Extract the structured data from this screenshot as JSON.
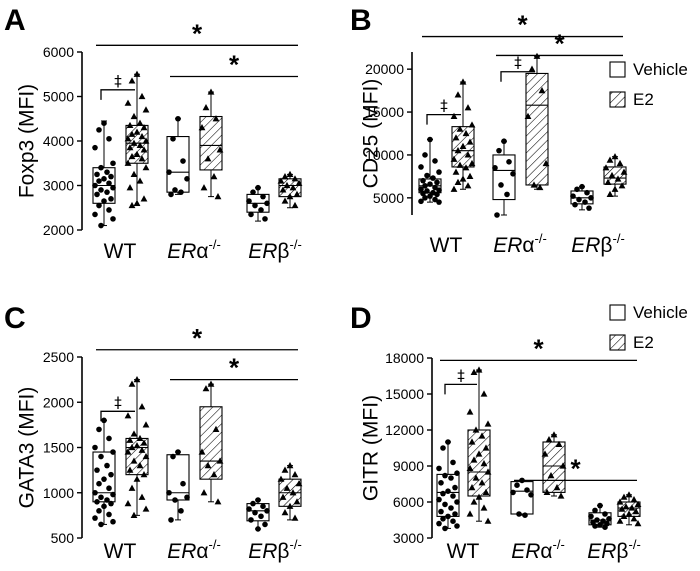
{
  "chart_data": [
    {
      "type": "box",
      "panel": "A",
      "ylabel": "Foxp3 (MFI)",
      "ylim": [
        2000,
        6000
      ],
      "yticks": [
        2000,
        3000,
        4000,
        5000,
        6000
      ],
      "categories": [
        {
          "base": "WT",
          "sup": ""
        },
        {
          "base": "ER",
          "greek": "α",
          "sup": "-/-"
        },
        {
          "base": "ER",
          "greek": "β",
          "sup": "-/-"
        }
      ],
      "series": [
        {
          "group": 0,
          "fill": "open",
          "stats": {
            "min": 2100,
            "q1": 2600,
            "median": 3000,
            "q3": 3400,
            "max": 4450
          },
          "points": [
            4400,
            4250,
            4050,
            3850,
            3500,
            3400,
            3300,
            3250,
            3200,
            3150,
            3100,
            3050,
            3000,
            2950,
            2900,
            2850,
            2800,
            2700,
            2650,
            2550,
            2450,
            2350,
            2250,
            2100
          ]
        },
        {
          "group": 0,
          "fill": "hatched",
          "stats": {
            "min": 2550,
            "q1": 3500,
            "median": 3950,
            "q3": 4350,
            "max": 5500
          },
          "points": [
            5500,
            5350,
            5000,
            4850,
            4700,
            4550,
            4400,
            4350,
            4300,
            4200,
            4150,
            4100,
            4050,
            4000,
            3950,
            3900,
            3850,
            3800,
            3700,
            3650,
            3600,
            3500,
            3400,
            3250,
            3100,
            2950,
            2700,
            2600,
            2550
          ]
        },
        {
          "group": 1,
          "fill": "open",
          "stats": {
            "min": 2800,
            "q1": 2850,
            "median": 3300,
            "q3": 4100,
            "max": 4500
          },
          "points": [
            4500,
            4050,
            3550,
            3300,
            3150,
            2900,
            2850,
            2800
          ]
        },
        {
          "group": 1,
          "fill": "hatched",
          "stats": {
            "min": 2750,
            "q1": 3350,
            "median": 3900,
            "q3": 4550,
            "max": 5100
          },
          "points": [
            5100,
            4750,
            4500,
            4300,
            3800,
            3600,
            3200,
            2950,
            2750
          ]
        },
        {
          "group": 2,
          "fill": "open",
          "stats": {
            "min": 2200,
            "q1": 2400,
            "median": 2600,
            "q3": 2800,
            "max": 2950
          },
          "points": [
            2950,
            2850,
            2750,
            2650,
            2600,
            2550,
            2450,
            2350,
            2250
          ]
        },
        {
          "group": 2,
          "fill": "hatched",
          "stats": {
            "min": 2500,
            "q1": 2750,
            "median": 3000,
            "q3": 3150,
            "max": 3250
          },
          "points": [
            3250,
            3200,
            3150,
            3100,
            3050,
            3000,
            2950,
            2900,
            2800,
            2750,
            2650,
            2550
          ]
        }
      ],
      "brackets": [
        {
          "type": "dagger",
          "label": "‡",
          "from": 0,
          "to": 1,
          "y": 5150
        },
        {
          "type": "star",
          "label": "*",
          "from": 0,
          "to": 5,
          "y": 6150
        },
        {
          "type": "star",
          "label": "*",
          "from": 2,
          "to": 5,
          "y": 5450
        }
      ],
      "legend": null
    },
    {
      "type": "box",
      "panel": "B",
      "ylabel": "CD25 (MFI)",
      "ylim": [
        3000,
        22000
      ],
      "yticks": [
        5000,
        10000,
        15000,
        20000
      ],
      "categories": [
        {
          "base": "WT",
          "sup": ""
        },
        {
          "base": "ER",
          "greek": "α",
          "sup": "-/-"
        },
        {
          "base": "ER",
          "greek": "β",
          "sup": "-/-"
        }
      ],
      "series": [
        {
          "group": 0,
          "fill": "open",
          "stats": {
            "min": 4500,
            "q1": 5600,
            "median": 6400,
            "q3": 7200,
            "max": 11800
          },
          "points": [
            11800,
            10000,
            9300,
            8600,
            8000,
            7600,
            7300,
            7000,
            6800,
            6600,
            6400,
            6200,
            6000,
            5900,
            5800,
            5600,
            5500,
            5400,
            5200,
            5000,
            4800,
            4600,
            4500
          ]
        },
        {
          "group": 0,
          "fill": "hatched",
          "stats": {
            "min": 6000,
            "q1": 8600,
            "median": 10500,
            "q3": 13300,
            "max": 18500
          },
          "points": [
            18500,
            17000,
            15500,
            14500,
            13500,
            13000,
            12500,
            12000,
            11500,
            11000,
            10500,
            10000,
            9500,
            9000,
            8800,
            8500,
            8000,
            7500,
            7200,
            6800,
            6400,
            6000
          ]
        },
        {
          "group": 1,
          "fill": "open",
          "stats": {
            "min": 3000,
            "q1": 4800,
            "median": 8200,
            "q3": 10000,
            "max": 11600
          },
          "points": [
            11600,
            10500,
            9200,
            8500,
            7800,
            6500,
            5400,
            3000
          ]
        },
        {
          "group": 1,
          "fill": "hatched",
          "stats": {
            "min": 6000,
            "q1": 6500,
            "median": 15800,
            "q3": 19500,
            "max": 21500
          },
          "points": [
            21500,
            20000,
            17500,
            14500,
            9000,
            6500,
            6200
          ]
        },
        {
          "group": 2,
          "fill": "open",
          "stats": {
            "min": 3600,
            "q1": 4300,
            "median": 5000,
            "q3": 5800,
            "max": 6300
          },
          "points": [
            6300,
            6000,
            5600,
            5200,
            5000,
            4800,
            4500,
            4200,
            3800
          ]
        },
        {
          "group": 2,
          "fill": "hatched",
          "stats": {
            "min": 5200,
            "q1": 6600,
            "median": 7300,
            "q3": 8600,
            "max": 9800
          },
          "points": [
            9800,
            9400,
            9000,
            8500,
            8000,
            7600,
            7200,
            6800,
            6400,
            6000,
            5400
          ]
        }
      ],
      "brackets": [
        {
          "type": "dagger",
          "label": "‡",
          "from": 0,
          "to": 1,
          "y": 14700
        },
        {
          "type": "dagger",
          "label": "‡",
          "from": 2,
          "to": 3,
          "y": 19700
        },
        {
          "type": "star",
          "label": "*",
          "from": 0,
          "to": 5,
          "y": 23800
        },
        {
          "type": "star",
          "label": "*",
          "from": 2,
          "to": 5,
          "y": 21600
        }
      ],
      "legend": {
        "position": "top-right",
        "entries": [
          {
            "label": "Vehicle",
            "fill": "open"
          },
          {
            "label": "E2",
            "fill": "hatched"
          }
        ]
      }
    },
    {
      "type": "box",
      "panel": "C",
      "ylabel": "GATA3 (MFI)",
      "ylim": [
        500,
        2500
      ],
      "yticks": [
        500,
        1000,
        1500,
        2000,
        2500
      ],
      "categories": [
        {
          "base": "WT",
          "sup": ""
        },
        {
          "base": "ER",
          "greek": "α",
          "sup": "-/-"
        },
        {
          "base": "ER",
          "greek": "β",
          "sup": "-/-"
        }
      ],
      "series": [
        {
          "group": 0,
          "fill": "open",
          "stats": {
            "min": 650,
            "q1": 900,
            "median": 1000,
            "q3": 1450,
            "max": 1800
          },
          "points": [
            1800,
            1700,
            1600,
            1500,
            1450,
            1400,
            1300,
            1250,
            1200,
            1150,
            1100,
            1050,
            1000,
            980,
            950,
            920,
            900,
            880,
            850,
            800,
            760,
            720,
            680,
            650
          ]
        },
        {
          "group": 0,
          "fill": "hatched",
          "stats": {
            "min": 750,
            "q1": 1200,
            "median": 1500,
            "q3": 1600,
            "max": 2250
          },
          "points": [
            2250,
            2200,
            1950,
            1850,
            1750,
            1650,
            1600,
            1580,
            1550,
            1520,
            1500,
            1470,
            1450,
            1400,
            1350,
            1300,
            1250,
            1200,
            1150,
            1050,
            950,
            880,
            820,
            750
          ]
        },
        {
          "group": 1,
          "fill": "open",
          "stats": {
            "min": 700,
            "q1": 920,
            "median": 1000,
            "q3": 1420,
            "max": 1450
          },
          "points": [
            1450,
            1400,
            1100,
            1000,
            950,
            920,
            800,
            700
          ]
        },
        {
          "group": 1,
          "fill": "hatched",
          "stats": {
            "min": 900,
            "q1": 1150,
            "median": 1350,
            "q3": 1950,
            "max": 2200
          },
          "points": [
            2200,
            2150,
            1700,
            1450,
            1350,
            1300,
            1200,
            1000,
            900
          ]
        },
        {
          "group": 2,
          "fill": "open",
          "stats": {
            "min": 600,
            "q1": 690,
            "median": 800,
            "q3": 880,
            "max": 920
          },
          "points": [
            920,
            880,
            850,
            820,
            800,
            780,
            740,
            700,
            650,
            600
          ]
        },
        {
          "group": 2,
          "fill": "hatched",
          "stats": {
            "min": 700,
            "q1": 850,
            "median": 1000,
            "q3": 1150,
            "max": 1300
          },
          "points": [
            1300,
            1250,
            1200,
            1150,
            1100,
            1050,
            1000,
            950,
            900,
            850,
            780,
            720
          ]
        }
      ],
      "brackets": [
        {
          "type": "dagger",
          "label": "‡",
          "from": 0,
          "to": 1,
          "y": 1900
        },
        {
          "type": "star",
          "label": "*",
          "from": 0,
          "to": 5,
          "y": 2580
        },
        {
          "type": "star",
          "label": "*",
          "from": 2,
          "to": 5,
          "y": 2250
        }
      ],
      "legend": null
    },
    {
      "type": "box",
      "panel": "D",
      "ylabel": "GITR (MFI)",
      "ylim": [
        3000,
        18000
      ],
      "yticks": [
        3000,
        6000,
        9000,
        12000,
        15000,
        18000
      ],
      "categories": [
        {
          "base": "WT",
          "sup": ""
        },
        {
          "base": "ER",
          "greek": "α",
          "sup": "-/-"
        },
        {
          "base": "ER",
          "greek": "β",
          "sup": "-/-"
        }
      ],
      "series": [
        {
          "group": 0,
          "fill": "open",
          "stats": {
            "min": 3800,
            "q1": 4800,
            "median": 6800,
            "q3": 8300,
            "max": 11000
          },
          "points": [
            11000,
            10500,
            9300,
            8800,
            8400,
            8200,
            8000,
            7600,
            7200,
            6900,
            6700,
            6500,
            6200,
            6000,
            5800,
            5500,
            5200,
            5000,
            4800,
            4600,
            4400,
            4200,
            4000,
            3800
          ]
        },
        {
          "group": 0,
          "fill": "hatched",
          "stats": {
            "min": 4400,
            "q1": 6500,
            "median": 8500,
            "q3": 12000,
            "max": 17000
          },
          "points": [
            17000,
            16800,
            15000,
            13500,
            12500,
            12000,
            11500,
            11000,
            10500,
            10000,
            9500,
            9200,
            8800,
            8500,
            8000,
            7600,
            7200,
            6800,
            6400,
            6000,
            5500,
            5000,
            4400
          ]
        },
        {
          "group": 1,
          "fill": "open",
          "stats": {
            "min": 4900,
            "q1": 5000,
            "median": 6900,
            "q3": 7700,
            "max": 7800
          },
          "points": [
            7800,
            7400,
            7000,
            6800,
            6600,
            5000,
            4900
          ]
        },
        {
          "group": 1,
          "fill": "hatched",
          "stats": {
            "min": 6500,
            "q1": 6800,
            "median": 9000,
            "q3": 11000,
            "max": 11600
          },
          "points": [
            11600,
            11200,
            10800,
            10000,
            9000,
            8200,
            7200,
            6800,
            6500
          ]
        },
        {
          "group": 2,
          "fill": "open",
          "stats": {
            "min": 3900,
            "q1": 4100,
            "median": 4500,
            "q3": 5100,
            "max": 5700
          },
          "points": [
            5700,
            5300,
            5000,
            4800,
            4600,
            4500,
            4400,
            4300,
            4200,
            4100,
            4000,
            3900
          ]
        },
        {
          "group": 2,
          "fill": "hatched",
          "stats": {
            "min": 4100,
            "q1": 4800,
            "median": 5500,
            "q3": 6000,
            "max": 6600
          },
          "points": [
            6600,
            6400,
            6200,
            6000,
            5800,
            5600,
            5500,
            5400,
            5200,
            5000,
            4800,
            4600,
            4400,
            4200
          ]
        }
      ],
      "brackets": [
        {
          "type": "dagger",
          "label": "‡",
          "from": 0,
          "to": 1,
          "y": 15800
        },
        {
          "type": "star",
          "label": "*",
          "from": 0,
          "to": 5,
          "y": 17800
        },
        {
          "type": "star",
          "label": "*",
          "from": 2,
          "to": 5,
          "y": 7800
        }
      ],
      "legend": {
        "position": "top-right",
        "entries": [
          {
            "label": "Vehicle",
            "fill": "open"
          },
          {
            "label": "E2",
            "fill": "hatched"
          }
        ]
      }
    }
  ]
}
